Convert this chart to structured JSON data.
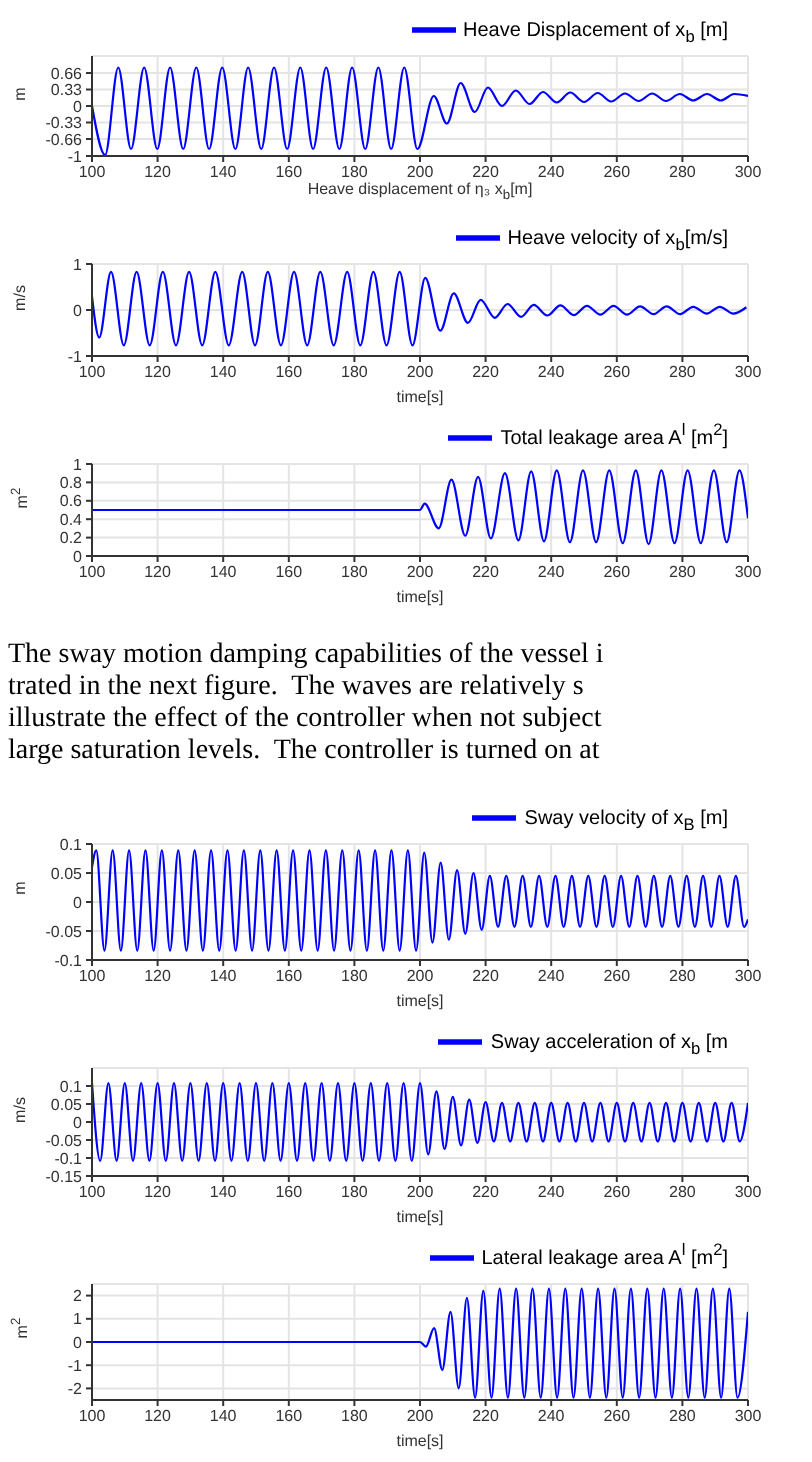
{
  "chart_data": [
    {
      "type": "line",
      "xlabel": "Heave displacement of η₃ x$_{b}$[m]",
      "ylabel": "m",
      "xlim": [
        100,
        300
      ],
      "xticks": [
        100,
        120,
        140,
        160,
        180,
        200,
        220,
        240,
        260,
        280,
        300
      ],
      "ylim": [
        -1,
        1
      ],
      "yticks": [
        -1,
        -0.66,
        -0.33,
        0,
        0.33,
        0.66
      ],
      "grid": true,
      "legend": "top right",
      "series": [
        {
          "name": "Heave Displacement of x$_{b}$ [m]",
          "color": "#0000ff",
          "x": [
            100,
            104,
            108,
            111.9,
            115.9,
            119.9,
            123.8,
            127.8,
            131.8,
            135.7,
            139.7,
            143.7,
            147.6,
            151.6,
            155.5,
            159.5,
            163.5,
            167.4,
            171.4,
            175.4,
            179.3,
            183.3,
            187.3,
            191.2,
            195.2,
            199.2,
            204.2,
            208.2,
            212.4,
            216.7,
            220.7,
            225,
            229.2,
            233.4,
            237.5,
            241.7,
            245.8,
            250,
            254.2,
            258.3,
            262.5,
            266.7,
            270.8,
            275,
            279.2,
            283.3,
            287.5,
            291.7,
            295.8,
            300
          ],
          "values": [
            0,
            -0.98,
            0.77,
            -0.86,
            0.77,
            -0.86,
            0.77,
            -0.86,
            0.77,
            -0.86,
            0.77,
            -0.86,
            0.77,
            -0.86,
            0.77,
            -0.86,
            0.77,
            -0.86,
            0.77,
            -0.86,
            0.77,
            -0.86,
            0.77,
            -0.86,
            0.77,
            -0.86,
            0.2,
            -0.35,
            0.46,
            -0.12,
            0.37,
            0,
            0.31,
            0.04,
            0.28,
            0.07,
            0.27,
            0.08,
            0.26,
            0.09,
            0.25,
            0.1,
            0.25,
            0.1,
            0.24,
            0.11,
            0.24,
            0.11,
            0.24,
            0.2
          ]
        }
      ]
    },
    {
      "type": "line",
      "xlabel": "time[s]",
      "ylabel": "m/s",
      "xlim": [
        100,
        300
      ],
      "xticks": [
        100,
        120,
        140,
        160,
        180,
        200,
        220,
        240,
        260,
        280,
        300
      ],
      "ylim": [
        -1,
        1
      ],
      "yticks": [
        -1,
        0,
        1
      ],
      "grid": true,
      "legend": "top right",
      "series": [
        {
          "name": "Heave velocity of x$_{b}$[m/s]",
          "color": "#0000ff",
          "x": [
            100,
            102.2,
            105.8,
            109.7,
            113.6,
            117.6,
            121.6,
            125.6,
            129.6,
            133.6,
            137.6,
            141.7,
            145.8,
            149.7,
            153.6,
            157.6,
            161.6,
            165.6,
            169.6,
            173.7,
            177.8,
            181.8,
            185.8,
            189.8,
            193.8,
            197.7,
            201.6,
            206.2,
            210.3,
            214.6,
            218.5,
            222.8,
            226.7,
            230.8,
            234.7,
            238.8,
            242.8,
            246.9,
            250.9,
            255,
            259,
            263.1,
            267.1,
            271.2,
            275.2,
            279.3,
            283.3,
            287.4,
            291.4,
            295.5,
            299.5
          ],
          "values": [
            0.29,
            -0.6,
            0.83,
            -0.77,
            0.83,
            -0.77,
            0.83,
            -0.77,
            0.83,
            -0.77,
            0.83,
            -0.77,
            0.83,
            -0.77,
            0.83,
            -0.77,
            0.83,
            -0.77,
            0.83,
            -0.77,
            0.83,
            -0.77,
            0.83,
            -0.77,
            0.83,
            -0.77,
            0.7,
            -0.45,
            0.36,
            -0.28,
            0.22,
            -0.17,
            0.13,
            -0.15,
            0.11,
            -0.12,
            0.1,
            -0.11,
            0.09,
            -0.1,
            0.09,
            -0.1,
            0.08,
            -0.09,
            0.08,
            -0.09,
            0.07,
            -0.08,
            0.07,
            -0.08,
            0.06
          ]
        }
      ]
    },
    {
      "type": "line",
      "xlabel": "time[s]",
      "ylabel": "m$^{2}$",
      "xlim": [
        100,
        300
      ],
      "xticks": [
        100,
        120,
        140,
        160,
        180,
        200,
        220,
        240,
        260,
        280,
        300
      ],
      "ylim": [
        0,
        1
      ],
      "yticks": [
        0,
        0.2,
        0.4,
        0.6,
        0.8,
        1
      ],
      "grid": true,
      "legend": "top right",
      "series": [
        {
          "name": "Total leakage area A$^{l}$ [m$^{2}$]",
          "color": "#0000ff",
          "x": [
            100,
            200,
            201.4,
            205.7,
            209.6,
            213.8,
            217.7,
            221.6,
            225.9,
            230,
            233.9,
            237.8,
            241.7,
            245.7,
            249.7,
            253.7,
            257.7,
            261.8,
            265.8,
            269.7,
            273.6,
            277.6,
            281.6,
            285.6,
            289.6,
            293.5,
            297.4,
            300
          ],
          "values": [
            0.5,
            0.5,
            0.57,
            0.3,
            0.83,
            0.22,
            0.86,
            0.19,
            0.9,
            0.17,
            0.92,
            0.16,
            0.93,
            0.15,
            0.93,
            0.15,
            0.93,
            0.14,
            0.93,
            0.13,
            0.93,
            0.14,
            0.93,
            0.14,
            0.93,
            0.15,
            0.93,
            0.41
          ]
        }
      ]
    },
    {
      "type": "line",
      "annotations": [
        "The sway motion damping capabilities of the vessel i",
        "trated in the next figure.  The waves are relatively s",
        "illustrate the effect of the controller when not subject",
        "large saturation levels.  The controller is turned on at"
      ],
      "xlabel": "time[s]",
      "ylabel": "m",
      "xlim": [
        100,
        300
      ],
      "xticks": [
        100,
        120,
        140,
        160,
        180,
        200,
        220,
        240,
        260,
        280,
        300
      ],
      "ylim": [
        -0.1,
        0.1
      ],
      "yticks": [
        -0.1,
        -0.05,
        0,
        0.05,
        0.1
      ],
      "grid": true,
      "legend": "top right",
      "series": [
        {
          "name": "Sway velocity of x$_{B}$ [m]",
          "color": "#0000ff",
          "x": [
            100,
            101.3,
            103.8,
            106.3,
            108.8,
            111.3,
            113.8,
            116.3,
            118.8,
            121.3,
            123.8,
            126.3,
            128.8,
            131.3,
            133.8,
            136.3,
            138.8,
            141.3,
            143.8,
            146.3,
            148.8,
            151.3,
            153.8,
            156.3,
            158.8,
            161.3,
            163.8,
            166.3,
            168.8,
            171.3,
            173.8,
            176.3,
            178.8,
            181.3,
            183.8,
            186.3,
            188.8,
            191.3,
            193.8,
            196.3,
            198.8,
            201.3,
            203.8,
            206.3,
            208.8,
            211.3,
            213.8,
            216.3,
            218.8,
            221.3,
            223.8,
            226.3,
            228.8,
            231.3,
            233.8,
            236.3,
            238.8,
            241.3,
            243.8,
            246.3,
            248.8,
            251.3,
            253.8,
            256.3,
            258.8,
            261.3,
            263.8,
            266.3,
            268.8,
            271.3,
            273.8,
            276.3,
            278.8,
            281.3,
            283.8,
            286.3,
            288.8,
            291.3,
            293.8,
            296.3,
            298.8,
            300
          ],
          "values": [
            0.06,
            0.089,
            -0.084,
            0.089,
            -0.084,
            0.089,
            -0.084,
            0.089,
            -0.084,
            0.089,
            -0.084,
            0.089,
            -0.084,
            0.089,
            -0.084,
            0.089,
            -0.084,
            0.089,
            -0.084,
            0.089,
            -0.084,
            0.089,
            -0.084,
            0.089,
            -0.084,
            0.089,
            -0.084,
            0.089,
            -0.084,
            0.089,
            -0.084,
            0.089,
            -0.084,
            0.089,
            -0.084,
            0.089,
            -0.084,
            0.089,
            -0.084,
            0.089,
            -0.084,
            0.085,
            -0.07,
            0.068,
            -0.065,
            0.055,
            -0.055,
            0.05,
            -0.048,
            0.045,
            -0.043,
            0.045,
            -0.043,
            0.045,
            -0.043,
            0.045,
            -0.043,
            0.045,
            -0.043,
            0.045,
            -0.043,
            0.045,
            -0.043,
            0.045,
            -0.043,
            0.045,
            -0.043,
            0.045,
            -0.043,
            0.045,
            -0.043,
            0.045,
            -0.043,
            0.045,
            -0.043,
            0.045,
            -0.043,
            0.045,
            -0.043,
            0.045,
            -0.043,
            -0.03
          ]
        }
      ]
    },
    {
      "type": "line",
      "xlabel": "time[s]",
      "ylabel": "m/s",
      "xlim": [
        100,
        300
      ],
      "xticks": [
        100,
        120,
        140,
        160,
        180,
        200,
        220,
        240,
        260,
        280,
        300
      ],
      "ylim": [
        -0.15,
        0.15
      ],
      "yticks": [
        -0.15,
        -0.1,
        -0.05,
        0,
        0.05,
        0.1
      ],
      "grid": true,
      "legend": "top right",
      "series": [
        {
          "name": "Sway acceleration of x$_{b}$ [m",
          "color": "#0000ff",
          "x": [
            100,
            102.5,
            105,
            107.5,
            110,
            112.5,
            115,
            117.5,
            120,
            122.5,
            125,
            127.5,
            130,
            132.5,
            135,
            137.5,
            140,
            142.5,
            145,
            147.5,
            150,
            152.5,
            155,
            157.5,
            160,
            162.5,
            165,
            167.5,
            170,
            172.5,
            175,
            177.5,
            180,
            182.5,
            185,
            187.5,
            190,
            192.5,
            195,
            197.5,
            200,
            202.5,
            205,
            207.5,
            210,
            212.5,
            215,
            217.5,
            220,
            222.5,
            225,
            227.5,
            230,
            232.5,
            235,
            237.5,
            240,
            242.5,
            245,
            247.5,
            250,
            252.5,
            255,
            257.5,
            260,
            262.5,
            265,
            267.5,
            270,
            272.5,
            275,
            277.5,
            280,
            282.5,
            285,
            287.5,
            290,
            292.5,
            295,
            297.5,
            300
          ],
          "values": [
            0.108,
            -0.108,
            0.108,
            -0.108,
            0.108,
            -0.108,
            0.108,
            -0.108,
            0.108,
            -0.108,
            0.108,
            -0.108,
            0.108,
            -0.108,
            0.108,
            -0.108,
            0.108,
            -0.108,
            0.108,
            -0.108,
            0.108,
            -0.108,
            0.108,
            -0.108,
            0.108,
            -0.108,
            0.108,
            -0.108,
            0.108,
            -0.108,
            0.108,
            -0.108,
            0.108,
            -0.108,
            0.108,
            -0.108,
            0.108,
            -0.108,
            0.108,
            -0.108,
            0.108,
            -0.09,
            0.085,
            -0.075,
            0.07,
            -0.065,
            0.062,
            -0.058,
            0.055,
            -0.054,
            0.053,
            -0.054,
            0.053,
            -0.054,
            0.053,
            -0.054,
            0.053,
            -0.054,
            0.053,
            -0.054,
            0.053,
            -0.054,
            0.053,
            -0.054,
            0.053,
            -0.054,
            0.053,
            -0.054,
            0.053,
            -0.054,
            0.053,
            -0.054,
            0.053,
            -0.054,
            0.053,
            -0.054,
            0.053,
            -0.054,
            0.053,
            -0.054,
            0.053
          ]
        }
      ]
    },
    {
      "type": "line",
      "xlabel": "time[s]",
      "ylabel": "m$^{2}$",
      "xlim": [
        100,
        300
      ],
      "xticks": [
        100,
        120,
        140,
        160,
        180,
        200,
        220,
        240,
        260,
        280,
        300
      ],
      "ylim": [
        -2.5,
        2.5
      ],
      "yticks": [
        -2,
        -1,
        0,
        1,
        2
      ],
      "grid": true,
      "legend": "top right",
      "series": [
        {
          "name": "Lateral leakage area A$^{l}$ [m$^{2}$]",
          "color": "#0000ff",
          "x": [
            100,
            200,
            201.8,
            204.3,
            206.8,
            209.3,
            211.8,
            214.3,
            216.8,
            219.3,
            221.8,
            224.3,
            226.8,
            229.3,
            231.8,
            234.3,
            236.8,
            239.3,
            241.8,
            244.3,
            246.8,
            249.3,
            251.8,
            254.3,
            256.8,
            259.3,
            261.8,
            264.3,
            266.8,
            269.3,
            271.8,
            274.3,
            276.8,
            279.3,
            281.8,
            284.3,
            286.8,
            289.3,
            291.8,
            294.3,
            296.8,
            300
          ],
          "values": [
            0,
            0,
            -0.2,
            0.6,
            -1.2,
            1.3,
            -2,
            1.9,
            -2.4,
            2.2,
            -2.4,
            2.3,
            -2.4,
            2.3,
            -2.4,
            2.3,
            -2.4,
            2.3,
            -2.4,
            2.3,
            -2.4,
            2.3,
            -2.4,
            2.3,
            -2.4,
            2.3,
            -2.4,
            2.3,
            -2.4,
            2.3,
            -2.4,
            2.3,
            -2.4,
            2.3,
            -2.4,
            2.3,
            -2.4,
            2.3,
            -2.4,
            2.3,
            -2.4,
            1.3
          ]
        }
      ]
    }
  ]
}
